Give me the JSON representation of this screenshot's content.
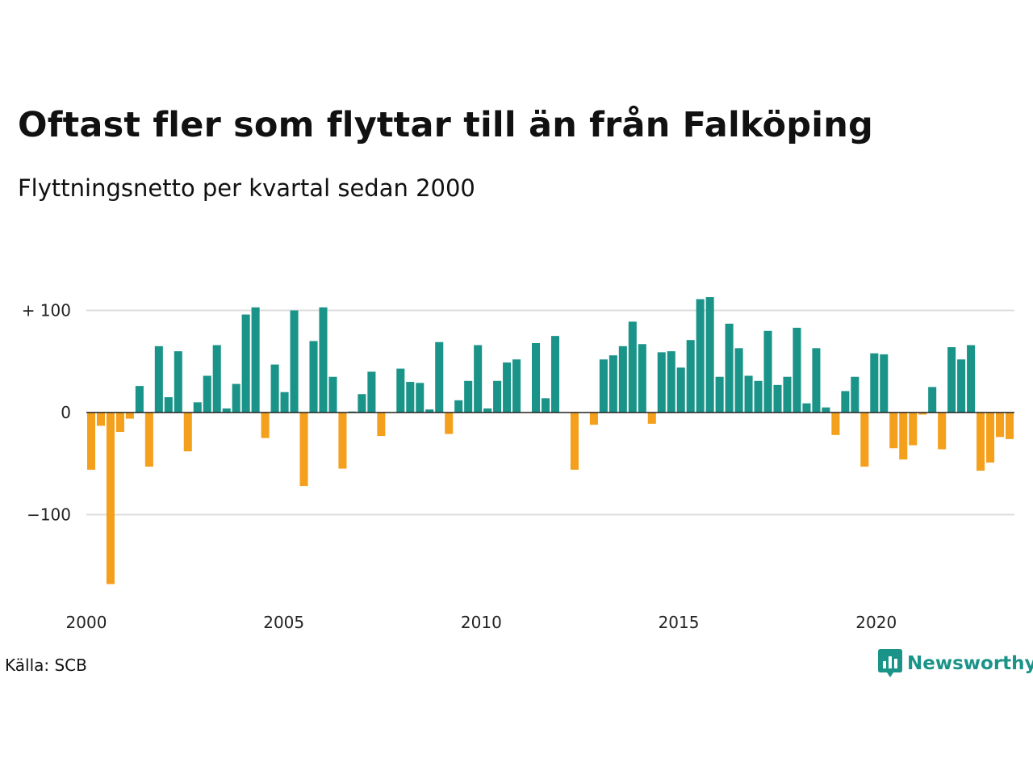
{
  "header": {
    "title": "Oftast fler som flyttar till än från Falköping",
    "subtitle": "Flyttningsnetto per kvartal sedan 2000"
  },
  "footer": {
    "source": "Källa: SCB",
    "brand": "Newsworthy",
    "brand_color": "#1a9488"
  },
  "colors": {
    "positive": "#1a9488",
    "negative": "#f5a01d",
    "grid": "#dddddd",
    "zero_line": "#222222"
  },
  "chart_data": {
    "type": "bar",
    "title": "",
    "xlabel": "",
    "ylabel": "",
    "ylim": [
      -175,
      120
    ],
    "xlim": [
      2000,
      2023.5
    ],
    "grid": true,
    "y_ticks": [
      {
        "value": 100,
        "label": "+ 100"
      },
      {
        "value": 0,
        "label": "0"
      },
      {
        "value": -100,
        "label": "−100"
      }
    ],
    "x_ticks": [
      {
        "value": 2000,
        "label": "2000"
      },
      {
        "value": 2005,
        "label": "2005"
      },
      {
        "value": 2010,
        "label": "2010"
      },
      {
        "value": 2015,
        "label": "2015"
      },
      {
        "value": 2020,
        "label": "2020"
      }
    ],
    "start_year": 2000,
    "start_quarter": 1,
    "values": [
      -56,
      -13,
      -168,
      -19,
      -6,
      26,
      -53,
      65,
      15,
      60,
      -38,
      10,
      36,
      66,
      4,
      28,
      96,
      103,
      -25,
      47,
      20,
      100,
      -72,
      70,
      103,
      35,
      -55,
      1,
      18,
      40,
      -23,
      0,
      43,
      30,
      29,
      3,
      69,
      -21,
      12,
      31,
      66,
      4,
      31,
      49,
      52,
      0,
      68,
      14,
      75,
      0,
      -56,
      0,
      -12,
      52,
      56,
      65,
      89,
      67,
      -11,
      59,
      60,
      44,
      71,
      111,
      113,
      35,
      87,
      63,
      36,
      31,
      80,
      27,
      35,
      83,
      9,
      63,
      5,
      -22,
      21,
      35,
      -53,
      58,
      57,
      -35,
      -46,
      -32,
      -2,
      25,
      -36,
      64,
      52,
      66,
      -57,
      -49,
      -24,
      -26
    ]
  }
}
